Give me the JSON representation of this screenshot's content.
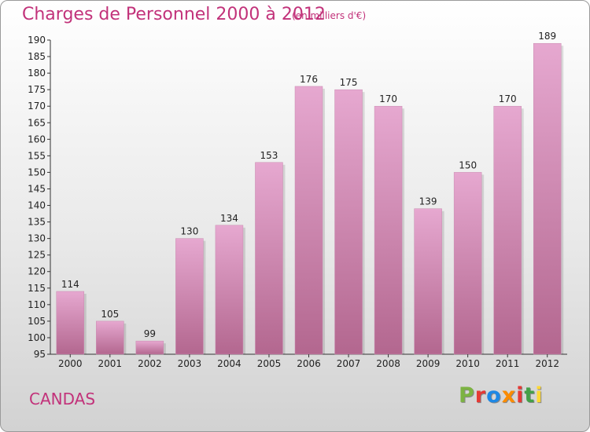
{
  "header": {
    "title": "Charges de Personnel 2000 à 2012",
    "subtitle": "(en milliers d'€)"
  },
  "footer": {
    "city": "CANDAS",
    "logo": "Proxiti"
  },
  "colors": {
    "title": "#c2327a",
    "bar_top": "#e6a8d0",
    "bar_bottom": "#b3678f",
    "axis": "#333333",
    "logo_letters": [
      "#7cb342",
      "#e53935",
      "#1e88e5",
      "#fb8c00",
      "#e53935",
      "#43a047",
      "#fdd835"
    ]
  },
  "chart_data": {
    "type": "bar",
    "categories": [
      "2000",
      "2001",
      "2002",
      "2003",
      "2004",
      "2005",
      "2006",
      "2007",
      "2008",
      "2009",
      "2010",
      "2011",
      "2012"
    ],
    "values": [
      114,
      105,
      99,
      130,
      134,
      153,
      176,
      175,
      170,
      139,
      150,
      170,
      189
    ],
    "title": "Charges de Personnel 2000 à 2012",
    "xlabel": "",
    "ylabel": "",
    "ylim": [
      95,
      190
    ],
    "ytick_step": 5,
    "grid": false
  }
}
